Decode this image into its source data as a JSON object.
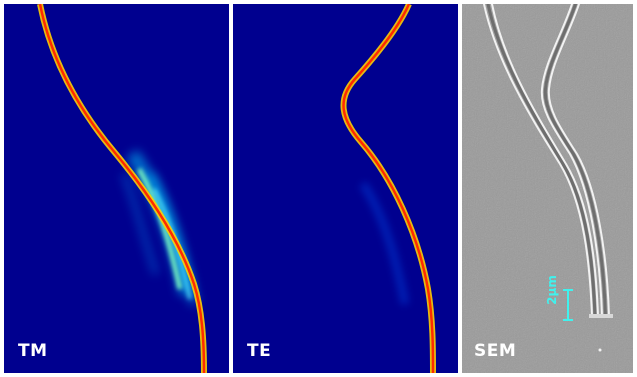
{
  "panels": [
    {
      "id": "tm",
      "label": "TM",
      "type": "simulation",
      "background": "#00008f"
    },
    {
      "id": "te",
      "label": "TE",
      "type": "simulation",
      "background": "#00008f"
    },
    {
      "id": "sem",
      "label": "SEM",
      "type": "micrograph",
      "background": "#9a9a9a"
    }
  ],
  "scale_bar": {
    "label": "2μm",
    "color": "#3ff2ee"
  },
  "colors": {
    "field_core": "#ff2a00",
    "field_edge": "#ffd000",
    "field_glow": "#00c8ff",
    "waveguide_edge": "#f2f2f2"
  }
}
